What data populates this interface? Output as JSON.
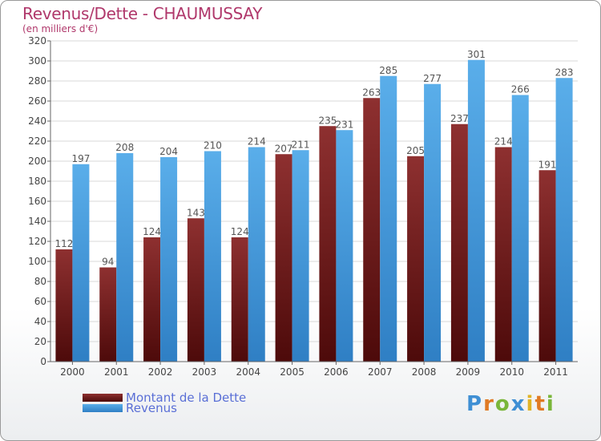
{
  "title": "Revenus/Dette - CHAUMUSSAY",
  "subtitle": "(en milliers d'€)",
  "logo": "Proxiti",
  "colors": {
    "dette": "#7a1f1f",
    "revenus": "#4a9ee0",
    "label": "#555555",
    "title": "#b0386b",
    "legend_text": "#5a6fd6"
  },
  "chart_data": {
    "type": "bar",
    "title": "Revenus/Dette - CHAUMUSSAY",
    "ylabel": "(en milliers d'€)",
    "categories": [
      "2000",
      "2001",
      "2002",
      "2003",
      "2004",
      "2005",
      "2006",
      "2007",
      "2008",
      "2009",
      "2010",
      "2011"
    ],
    "series": [
      {
        "name": "Montant de la Dette",
        "values": [
          112,
          94,
          124,
          143,
          124,
          207,
          235,
          263,
          205,
          237,
          214,
          191
        ]
      },
      {
        "name": "Revenus",
        "values": [
          197,
          208,
          204,
          210,
          214,
          211,
          231,
          285,
          277,
          301,
          266,
          283
        ]
      }
    ],
    "ylim": [
      0,
      320
    ],
    "yticks": [
      0,
      20,
      40,
      60,
      80,
      100,
      120,
      140,
      160,
      180,
      200,
      220,
      240,
      260,
      280,
      300,
      320
    ],
    "grid": true,
    "legend": "bottom-left"
  }
}
